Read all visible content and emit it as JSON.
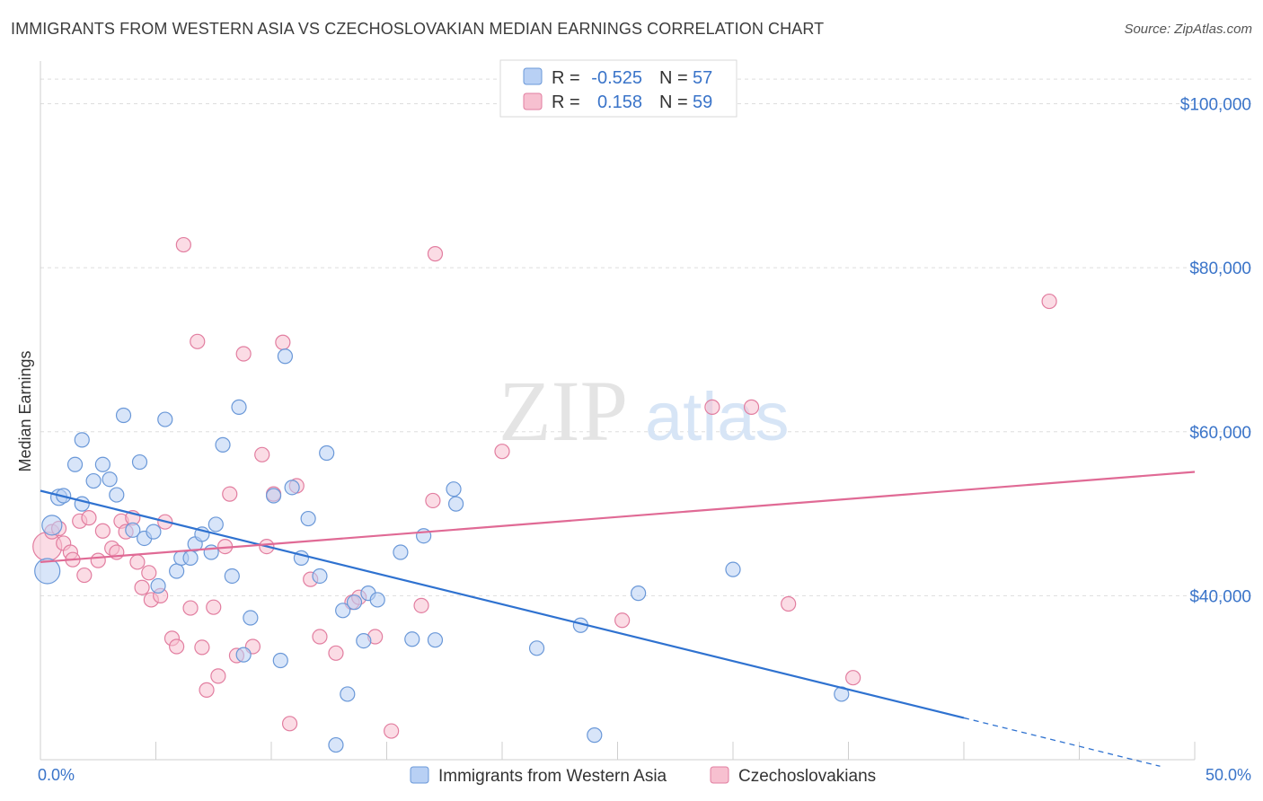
{
  "title": "IMMIGRANTS FROM WESTERN ASIA VS CZECHOSLOVAKIAN MEDIAN EARNINGS CORRELATION CHART",
  "source": "Source: ZipAtlas.com",
  "watermark": {
    "zip": "ZIP",
    "atlas": "atlas"
  },
  "colors": {
    "blue_fill": "#b8d0f4",
    "blue_stroke": "#6a98d8",
    "blue_line": "#2f72d0",
    "pink_fill": "#f7c0d0",
    "pink_stroke": "#e27ea0",
    "pink_line": "#e06a95",
    "axis_text": "#3a74c9",
    "grid": "#dddddd"
  },
  "legend": {
    "row1": {
      "r_label": "R =",
      "r_value": "-0.525",
      "n_label": "N =",
      "n_value": "57"
    },
    "row2": {
      "r_label": "R =",
      "r_value": "0.158",
      "n_label": "N =",
      "n_value": "59"
    }
  },
  "chart_data": {
    "type": "scatter",
    "title": "IMMIGRANTS FROM WESTERN ASIA VS CZECHOSLOVAKIAN MEDIAN EARNINGS CORRELATION CHART",
    "xlabel": "",
    "ylabel": "Median Earnings",
    "xlim": [
      0,
      50
    ],
    "ylim": [
      20000,
      104000
    ],
    "x_tick_labels": [
      "0.0%",
      "50.0%"
    ],
    "y_ticks": [
      40000,
      60000,
      80000,
      100000
    ],
    "y_tick_labels": [
      "$40,000",
      "$60,000",
      "$80,000",
      "$100,000"
    ],
    "grid": true,
    "legend_position": "top-center",
    "series": [
      {
        "name": "Immigrants from Western Asia",
        "r": -0.525,
        "n": 57,
        "trend": {
          "x0": 0,
          "y0": 52800,
          "x1": 40,
          "y1": 25100,
          "dash_x1": 48.5,
          "dash_y1": 19200
        },
        "points": [
          [
            0.3,
            43000,
            14
          ],
          [
            0.5,
            48600,
            11
          ],
          [
            0.8,
            52000,
            9
          ],
          [
            1.0,
            52200,
            8
          ],
          [
            1.8,
            59000,
            8
          ],
          [
            1.5,
            56000,
            8
          ],
          [
            1.8,
            51200,
            8
          ],
          [
            2.3,
            54000,
            8
          ],
          [
            2.7,
            56000,
            8
          ],
          [
            3.0,
            54200,
            8
          ],
          [
            3.3,
            52300,
            8
          ],
          [
            3.6,
            62000,
            8
          ],
          [
            4.0,
            48000,
            8
          ],
          [
            4.3,
            56300,
            8
          ],
          [
            4.5,
            47000,
            8
          ],
          [
            4.9,
            47800,
            8
          ],
          [
            5.1,
            41200,
            8
          ],
          [
            5.4,
            61500,
            8
          ],
          [
            5.9,
            43000,
            8
          ],
          [
            6.1,
            44600,
            8
          ],
          [
            6.5,
            44600,
            8
          ],
          [
            6.7,
            46300,
            8
          ],
          [
            7.0,
            47500,
            8
          ],
          [
            7.4,
            45300,
            8
          ],
          [
            7.6,
            48700,
            8
          ],
          [
            7.9,
            58400,
            8
          ],
          [
            8.3,
            42400,
            8
          ],
          [
            8.6,
            63000,
            8
          ],
          [
            8.8,
            32800,
            8
          ],
          [
            9.1,
            37300,
            8
          ],
          [
            10.1,
            52200,
            8
          ],
          [
            10.4,
            32100,
            8
          ],
          [
            10.6,
            69200,
            8
          ],
          [
            10.9,
            53200,
            8
          ],
          [
            11.3,
            44600,
            8
          ],
          [
            11.6,
            49400,
            8
          ],
          [
            12.1,
            42400,
            8
          ],
          [
            12.4,
            57400,
            8
          ],
          [
            12.8,
            21800,
            8
          ],
          [
            13.1,
            38200,
            8
          ],
          [
            13.3,
            28000,
            8
          ],
          [
            13.6,
            39200,
            8
          ],
          [
            14.0,
            34500,
            8
          ],
          [
            14.2,
            40300,
            8
          ],
          [
            14.6,
            39500,
            8
          ],
          [
            15.6,
            45300,
            8
          ],
          [
            16.1,
            34700,
            8
          ],
          [
            16.6,
            47300,
            8
          ],
          [
            17.1,
            34600,
            8
          ],
          [
            17.9,
            53000,
            8
          ],
          [
            18.0,
            51200,
            8
          ],
          [
            21.5,
            33600,
            8
          ],
          [
            23.4,
            36400,
            8
          ],
          [
            24.0,
            23000,
            8
          ],
          [
            25.9,
            40300,
            8
          ],
          [
            30.0,
            43200,
            8
          ],
          [
            34.7,
            28000,
            8
          ]
        ]
      },
      {
        "name": "Czechoslovakians",
        "r": 0.158,
        "n": 59,
        "trend": {
          "x0": 0,
          "y0": 44100,
          "x1": 50,
          "y1": 55100
        },
        "points": [
          [
            0.3,
            46000,
            16
          ],
          [
            0.5,
            47800,
            8
          ],
          [
            0.8,
            48200,
            8
          ],
          [
            1.0,
            46400,
            8
          ],
          [
            1.3,
            45300,
            8
          ],
          [
            1.4,
            44400,
            8
          ],
          [
            1.7,
            49100,
            8
          ],
          [
            1.9,
            42500,
            8
          ],
          [
            2.1,
            49500,
            8
          ],
          [
            2.5,
            44300,
            8
          ],
          [
            2.7,
            47900,
            8
          ],
          [
            3.1,
            45800,
            8
          ],
          [
            3.3,
            45300,
            8
          ],
          [
            3.5,
            49100,
            8
          ],
          [
            3.7,
            47800,
            8
          ],
          [
            4.0,
            49500,
            8
          ],
          [
            4.2,
            44100,
            8
          ],
          [
            4.4,
            41000,
            8
          ],
          [
            4.7,
            42800,
            8
          ],
          [
            4.8,
            39500,
            8
          ],
          [
            5.2,
            40000,
            8
          ],
          [
            5.4,
            49000,
            8
          ],
          [
            5.7,
            34800,
            8
          ],
          [
            5.9,
            33800,
            8
          ],
          [
            6.2,
            82800,
            8
          ],
          [
            6.5,
            38500,
            8
          ],
          [
            6.8,
            71000,
            8
          ],
          [
            7.0,
            33700,
            8
          ],
          [
            7.2,
            28500,
            8
          ],
          [
            7.5,
            38600,
            8
          ],
          [
            7.7,
            30200,
            8
          ],
          [
            8.0,
            46000,
            8
          ],
          [
            8.2,
            52400,
            8
          ],
          [
            8.5,
            32700,
            8
          ],
          [
            8.8,
            69500,
            8
          ],
          [
            9.2,
            33800,
            8
          ],
          [
            9.6,
            57200,
            8
          ],
          [
            9.8,
            46000,
            8
          ],
          [
            10.1,
            52400,
            8
          ],
          [
            10.5,
            70900,
            8
          ],
          [
            10.8,
            24400,
            8
          ],
          [
            11.1,
            53400,
            8
          ],
          [
            11.7,
            42000,
            8
          ],
          [
            12.1,
            35000,
            8
          ],
          [
            12.8,
            33000,
            8
          ],
          [
            13.5,
            39200,
            8
          ],
          [
            13.8,
            39800,
            8
          ],
          [
            14.5,
            35000,
            8
          ],
          [
            15.2,
            23500,
            8
          ],
          [
            16.5,
            38800,
            8
          ],
          [
            17.0,
            51600,
            8
          ],
          [
            17.1,
            81700,
            8
          ],
          [
            20.0,
            57600,
            8
          ],
          [
            25.2,
            37000,
            8
          ],
          [
            29.1,
            63000,
            8
          ],
          [
            30.8,
            63000,
            8
          ],
          [
            32.4,
            39000,
            8
          ],
          [
            35.2,
            30000,
            8
          ],
          [
            43.7,
            75900,
            8
          ]
        ]
      }
    ]
  }
}
